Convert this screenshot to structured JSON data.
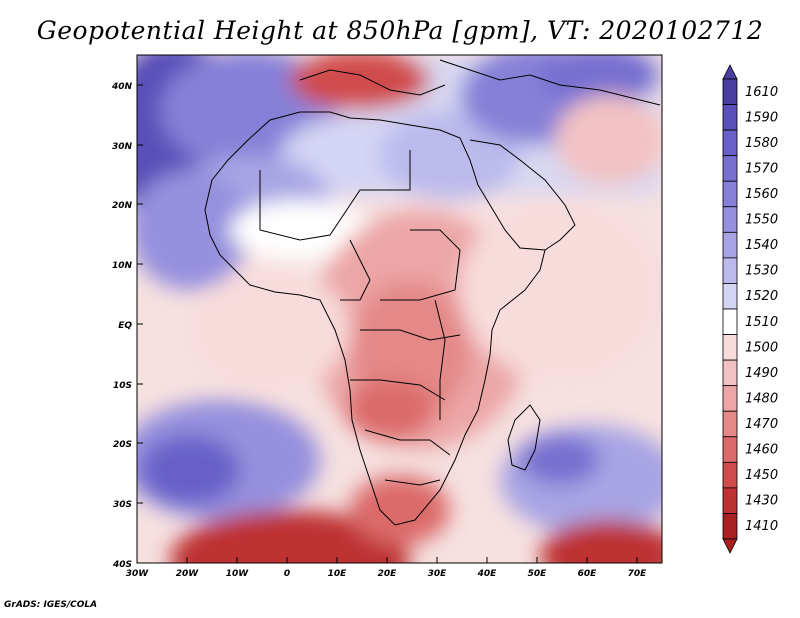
{
  "title": "Geopotential Height at 850hPa [gpm], VT: 2020102712",
  "credit": "GrADS: IGES/COLA",
  "map": {
    "lat_labels": [
      "40N",
      "30N",
      "20N",
      "10N",
      "EQ",
      "10S",
      "20S",
      "30S",
      "40S"
    ],
    "lon_labels": [
      "30W",
      "20W",
      "10W",
      "0",
      "10E",
      "20E",
      "30E",
      "40E",
      "50E",
      "60E",
      "70E"
    ]
  },
  "colorbar": {
    "levels": [
      "1610",
      "1590",
      "1580",
      "1570",
      "1560",
      "1550",
      "1540",
      "1530",
      "1520",
      "1510",
      "1500",
      "1490",
      "1480",
      "1470",
      "1460",
      "1450",
      "1430",
      "1410"
    ],
    "colors": [
      "#4a3ea0",
      "#5a50b8",
      "#6860c8",
      "#7870d0",
      "#8680d8",
      "#9690de",
      "#a8a4e4",
      "#bcbaec",
      "#d4d4f4",
      "#ffffff",
      "#f8dcdc",
      "#f2c2c2",
      "#eca6a6",
      "#e48888",
      "#dc6a6a",
      "#d04c4c",
      "#be3232",
      "#a82020"
    ]
  }
}
